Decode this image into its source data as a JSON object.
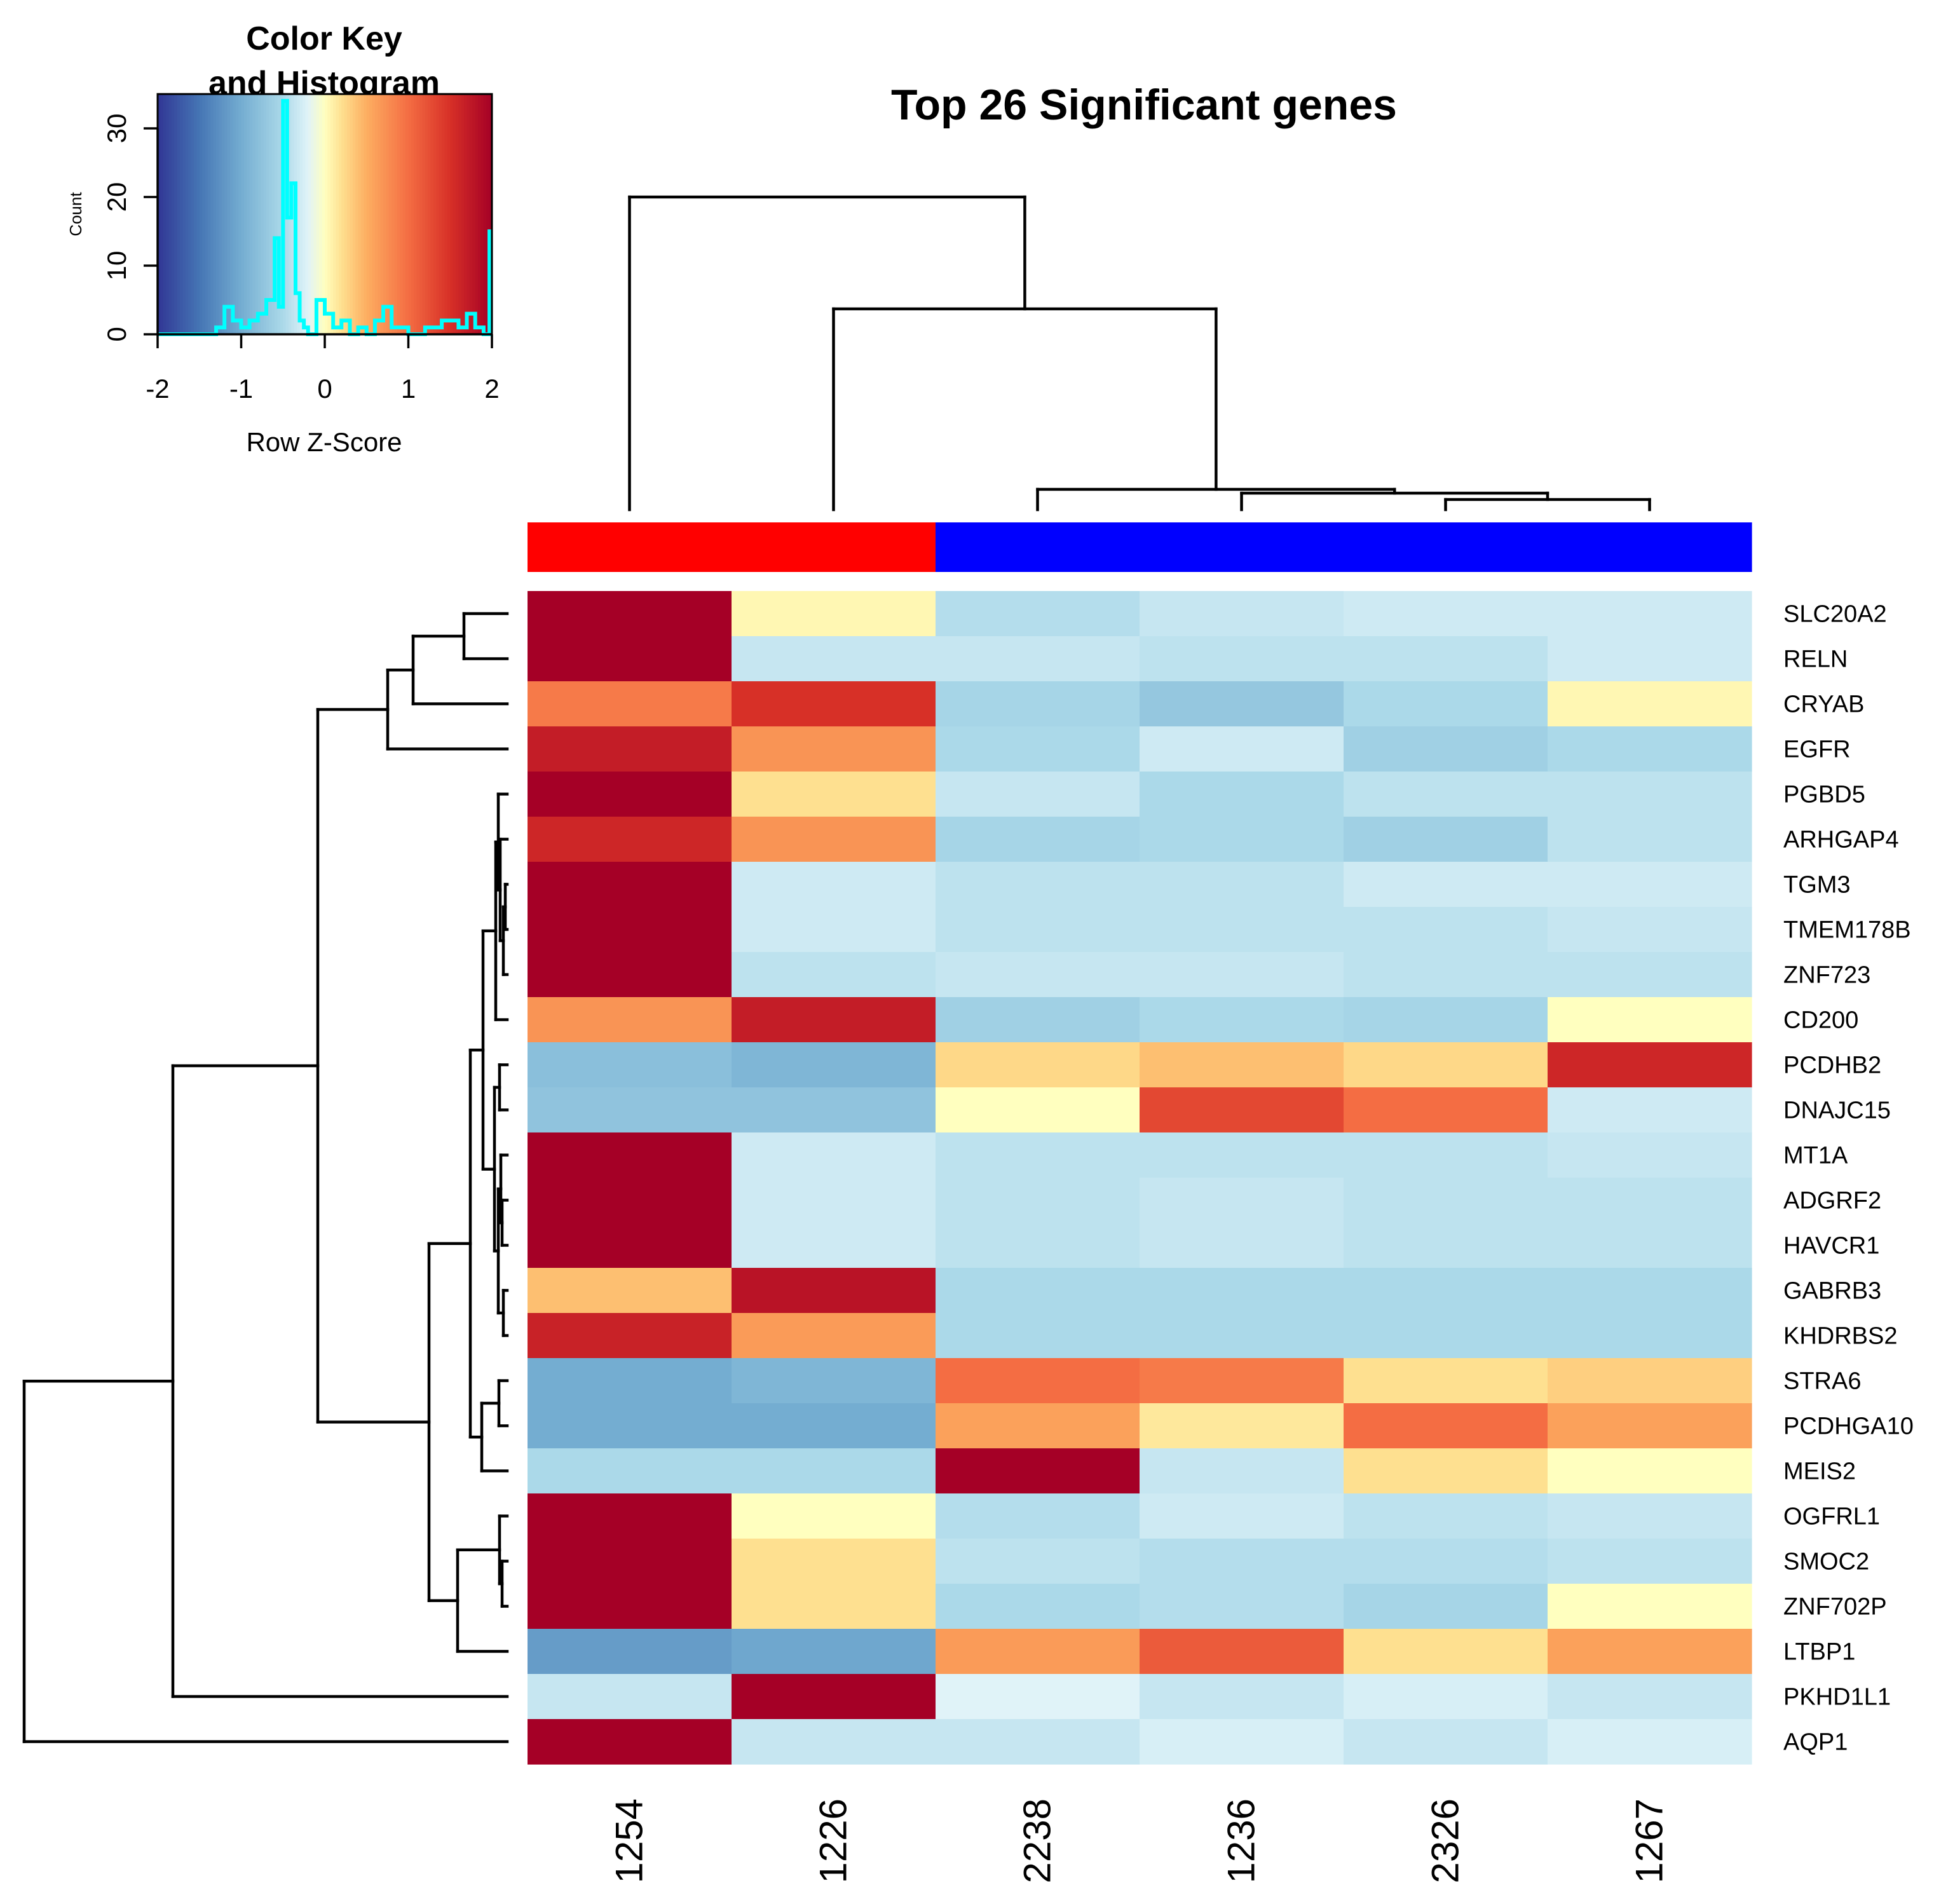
{
  "chart_data": {
    "type": "heatmap",
    "title": "Top 26 Significant genes",
    "columns": [
      "1254",
      "1226",
      "2238",
      "1236",
      "2326",
      "1267"
    ],
    "column_groups": [
      "red",
      "red",
      "blue",
      "blue",
      "blue",
      "blue"
    ],
    "group_colors": {
      "red": "#ff0000",
      "blue": "#0000ff"
    },
    "rows": [
      "SLC20A2",
      "RELN",
      "CRYAB",
      "EGFR",
      "PGBD5",
      "ARHGAP4",
      "TGM3",
      "TMEM178B",
      "ZNF723",
      "CD200",
      "PCDHB2",
      "DNAJC15",
      "MT1A",
      "ADGRF2",
      "HAVCR1",
      "GABRB3",
      "KHDRBS2",
      "STRA6",
      "PCDHGA10",
      "MEIS2",
      "OGFRL1",
      "SMOC2",
      "ZNF702P",
      "LTBP1",
      "PKHD1L1",
      "AQP1"
    ],
    "values": [
      [
        2.0,
        0.05,
        -0.45,
        -0.35,
        -0.3,
        -0.3
      ],
      [
        2.0,
        -0.35,
        -0.35,
        -0.4,
        -0.4,
        -0.3
      ],
      [
        0.9,
        1.5,
        -0.55,
        -0.7,
        -0.5,
        0.05
      ],
      [
        1.7,
        0.7,
        -0.5,
        -0.3,
        -0.6,
        -0.5
      ],
      [
        2.0,
        0.2,
        -0.35,
        -0.5,
        -0.4,
        -0.4
      ],
      [
        1.6,
        0.7,
        -0.55,
        -0.5,
        -0.6,
        -0.4
      ],
      [
        2.0,
        -0.3,
        -0.4,
        -0.4,
        -0.3,
        -0.3
      ],
      [
        2.0,
        -0.3,
        -0.4,
        -0.4,
        -0.4,
        -0.35
      ],
      [
        2.0,
        -0.4,
        -0.35,
        -0.35,
        -0.4,
        -0.4
      ],
      [
        0.7,
        1.7,
        -0.6,
        -0.5,
        -0.55,
        0.0
      ],
      [
        -0.8,
        -0.9,
        0.25,
        0.4,
        0.25,
        1.6
      ],
      [
        -0.75,
        -0.75,
        0.0,
        1.3,
        1.0,
        -0.3
      ],
      [
        2.0,
        -0.3,
        -0.4,
        -0.4,
        -0.4,
        -0.35
      ],
      [
        2.0,
        -0.3,
        -0.4,
        -0.35,
        -0.4,
        -0.4
      ],
      [
        2.0,
        -0.3,
        -0.4,
        -0.35,
        -0.4,
        -0.4
      ],
      [
        0.4,
        1.8,
        -0.5,
        -0.5,
        -0.5,
        -0.5
      ],
      [
        1.65,
        0.65,
        -0.5,
        -0.5,
        -0.5,
        -0.5
      ],
      [
        -1.0,
        -0.9,
        1.0,
        0.9,
        0.2,
        0.3
      ],
      [
        -1.0,
        -1.0,
        0.6,
        0.15,
        1.0,
        0.6
      ],
      [
        -0.5,
        -0.5,
        2.0,
        -0.35,
        0.2,
        0.0
      ],
      [
        2.0,
        0.0,
        -0.45,
        -0.3,
        -0.4,
        -0.35
      ],
      [
        2.0,
        0.2,
        -0.4,
        -0.45,
        -0.45,
        -0.4
      ],
      [
        2.0,
        0.2,
        -0.5,
        -0.45,
        -0.55,
        0.0
      ],
      [
        -1.15,
        -1.05,
        0.65,
        1.15,
        0.2,
        0.6
      ],
      [
        -0.35,
        2.0,
        -0.2,
        -0.35,
        -0.25,
        -0.35
      ],
      [
        2.0,
        -0.35,
        -0.35,
        -0.25,
        -0.35,
        -0.25
      ]
    ],
    "colorbar": {
      "title_lines": [
        "Color Key",
        "and Histogram"
      ],
      "xlabel": "Row Z-Score",
      "ylabel": "Count",
      "x_ticks": [
        "-2",
        "-1",
        "0",
        "1",
        "2"
      ],
      "y_ticks": [
        "0",
        "10",
        "20",
        "30"
      ],
      "xlim": [
        -2,
        2
      ],
      "ylim": [
        0,
        35
      ],
      "histogram": {
        "x": [
          -2.0,
          -1.75,
          -1.5,
          -1.3,
          -1.2,
          -1.1,
          -1.0,
          -0.9,
          -0.8,
          -0.7,
          -0.6,
          -0.55,
          -0.5,
          -0.45,
          -0.4,
          -0.35,
          -0.3,
          -0.25,
          -0.2,
          -0.1,
          0.0,
          0.1,
          0.2,
          0.3,
          0.4,
          0.5,
          0.6,
          0.7,
          0.8,
          0.9,
          1.0,
          1.2,
          1.4,
          1.6,
          1.7,
          1.8,
          1.9,
          1.97,
          2.0
        ],
        "y": [
          0,
          0,
          0,
          1,
          4,
          2,
          1,
          2,
          3,
          5,
          14,
          4,
          34,
          17,
          22,
          6,
          2,
          1,
          0,
          5,
          3,
          1,
          2,
          0,
          1,
          0,
          2,
          4,
          1,
          1,
          0,
          1,
          2,
          1,
          3,
          1,
          0,
          15,
          15
        ]
      }
    }
  }
}
